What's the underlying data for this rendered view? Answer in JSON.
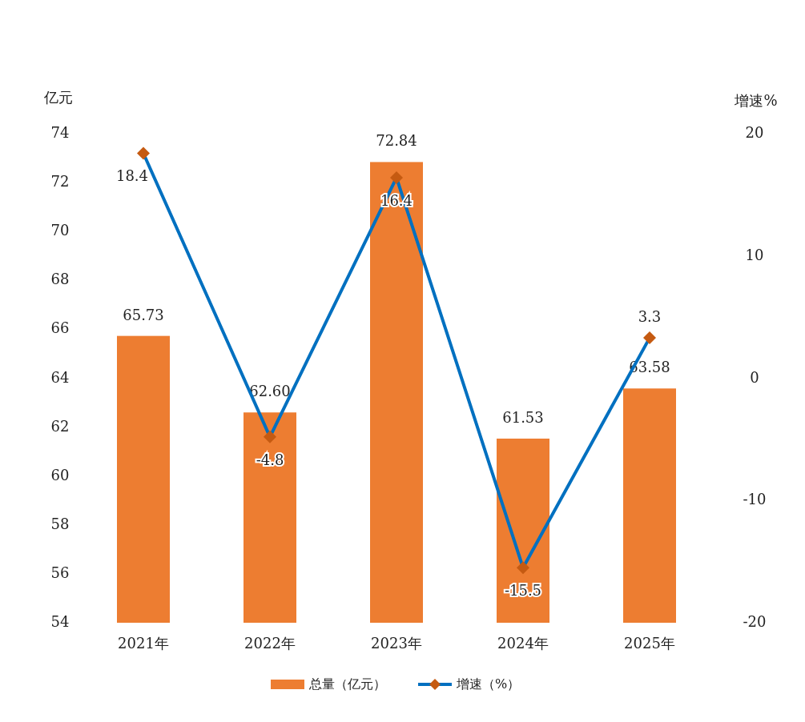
{
  "chart_data": {
    "type": "bar",
    "categories": [
      "2021年",
      "2022年",
      "2023年",
      "2024年",
      "2025年"
    ],
    "series": [
      {
        "name": "总量（亿元）",
        "color": "#ed7d31",
        "values": [
          65.73,
          62.6,
          72.84,
          61.53,
          63.58
        ],
        "value_labels": [
          "65.73",
          "62.60",
          "72.84",
          "61.53",
          "63.58"
        ]
      },
      {
        "name": "增速（%）",
        "type": "line",
        "axis": "y2",
        "color": "#0070c0",
        "values": [
          18.4,
          -4.8,
          16.4,
          -15.5,
          3.3
        ]
      }
    ],
    "ylabel": "亿元",
    "y2label": "增速%",
    "ylim": [
      54,
      74
    ],
    "yticks": [
      54,
      56,
      58,
      60,
      62,
      64,
      66,
      68,
      70,
      72,
      74
    ],
    "y2lim": [
      -20,
      20
    ],
    "y2ticks": [
      -20,
      -10,
      0,
      10,
      20
    ],
    "data_labels": true,
    "legend": "bottom",
    "marker": "diamond",
    "grid": false
  }
}
